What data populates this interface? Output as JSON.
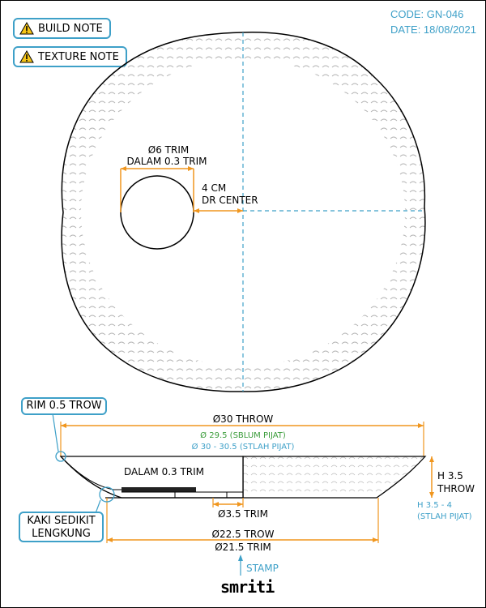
{
  "header": {
    "code": "CODE: GN-046",
    "date": "DATE: 18/08/2021"
  },
  "buttons": {
    "build_note": "BUILD NOTE",
    "texture_note": "TEXTURE NOTE"
  },
  "top_view": {
    "hole_dim_line1": "Ø6 TRIM",
    "hole_dim_line2": "DALAM 0.3 TRIM",
    "offset_line1": "4 CM",
    "offset_line2": "DR CENTER"
  },
  "section_view": {
    "rim_callout": "RIM 0.5 TROW",
    "throw_diameter": "Ø30 THROW",
    "sblum_pijat": "Ø 29.5 (SBLUM PIJAT)",
    "stlah_pijat": "Ø 30 - 30.5 (STLAH PIJAT)",
    "dalam_trim": "DALAM 0.3 TRIM",
    "height_label_line1": "H 3.5",
    "height_label_line2": "THROW",
    "height_stlah_line1": "H 3.5 - 4",
    "height_stlah_line2": "(STLAH PIJAT)",
    "foot_trim": "Ø3.5 TRIM",
    "foot_callout_line1": "KAKI SEDIKIT",
    "foot_callout_line2": "LENGKUNG",
    "base_trow": "Ø22.5 TROW",
    "base_trim": "Ø21.5 TRIM"
  },
  "footer": {
    "stamp_label": "STAMP",
    "brand": "smriti"
  },
  "colors": {
    "accent_blue": "#3ea0c8",
    "dim_orange": "#f0961e",
    "green": "#3a9c3a"
  }
}
